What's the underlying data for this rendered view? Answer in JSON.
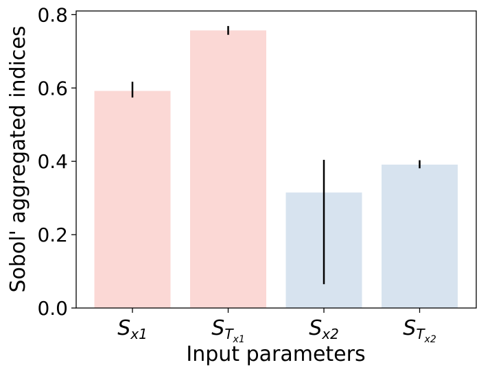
{
  "chart_data": {
    "type": "bar",
    "xlabel": "Input parameters",
    "ylabel": "Sobol' aggregated indices",
    "ylim": [
      0,
      0.81
    ],
    "yticks": [
      0.0,
      0.2,
      0.4,
      0.6,
      0.8
    ],
    "ytick_labels": [
      "0.0",
      "0.2",
      "0.4",
      "0.6",
      "0.8"
    ],
    "grid": false,
    "categories": [
      {
        "main": "S",
        "sub": "x1",
        "subsub": ""
      },
      {
        "main": "S",
        "sub": "T",
        "subsub": "x1"
      },
      {
        "main": "S",
        "sub": "x2",
        "subsub": ""
      },
      {
        "main": "S",
        "sub": "T",
        "subsub": "x2"
      }
    ],
    "values": [
      0.592,
      0.757,
      0.315,
      0.391
    ],
    "errors": [
      {
        "low": 0.574,
        "high": 0.617
      },
      {
        "low": 0.745,
        "high": 0.769
      },
      {
        "low": 0.065,
        "high": 0.404
      },
      {
        "low": 0.381,
        "high": 0.403
      }
    ],
    "colors": [
      "#fbd8d5",
      "#fbd8d5",
      "#d7e3ef",
      "#d7e3ef"
    ],
    "error_color": "#000000"
  }
}
